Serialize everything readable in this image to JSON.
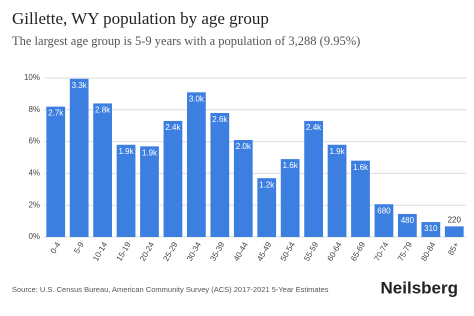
{
  "chart_data": {
    "type": "bar",
    "title": "Gillette, WY population by age group",
    "subtitle": "The largest age group is 5-9 years with a population of 3,288 (9.95%)",
    "categories": [
      "0-4",
      "5-9",
      "10-14",
      "15-19",
      "20-24",
      "25-29",
      "30-34",
      "35-39",
      "40-44",
      "45-49",
      "50-54",
      "55-59",
      "60-64",
      "65-69",
      "70-74",
      "75-79",
      "80-84",
      "85+"
    ],
    "values": [
      8.2,
      9.95,
      8.4,
      5.8,
      5.7,
      7.3,
      9.1,
      7.8,
      6.1,
      3.7,
      4.9,
      7.3,
      5.8,
      4.8,
      2.06,
      1.45,
      0.94,
      0.67
    ],
    "population_labels": [
      "2.7k",
      "3.3k",
      "2.8k",
      "1.9k",
      "1.9k",
      "2.4k",
      "3.0k",
      "2.6k",
      "2.0k",
      "1.2k",
      "1.6k",
      "2.4k",
      "1.9k",
      "1.6k",
      "680",
      "480",
      "310",
      "220"
    ],
    "color": "#3d7fe0",
    "ylim": [
      0,
      10
    ],
    "yticks": [
      {
        "value": 0,
        "label": "0%"
      },
      {
        "value": 2,
        "label": "2%"
      },
      {
        "value": 4,
        "label": "4%"
      },
      {
        "value": 6,
        "label": "6%"
      },
      {
        "value": 8,
        "label": "8%"
      },
      {
        "value": 10,
        "label": "10%"
      }
    ],
    "grid": true,
    "source": "Source: U.S. Census Bureau, American Community Survey (ACS) 2017-2021 5-Year Estimates",
    "brand": "Neilsberg"
  }
}
